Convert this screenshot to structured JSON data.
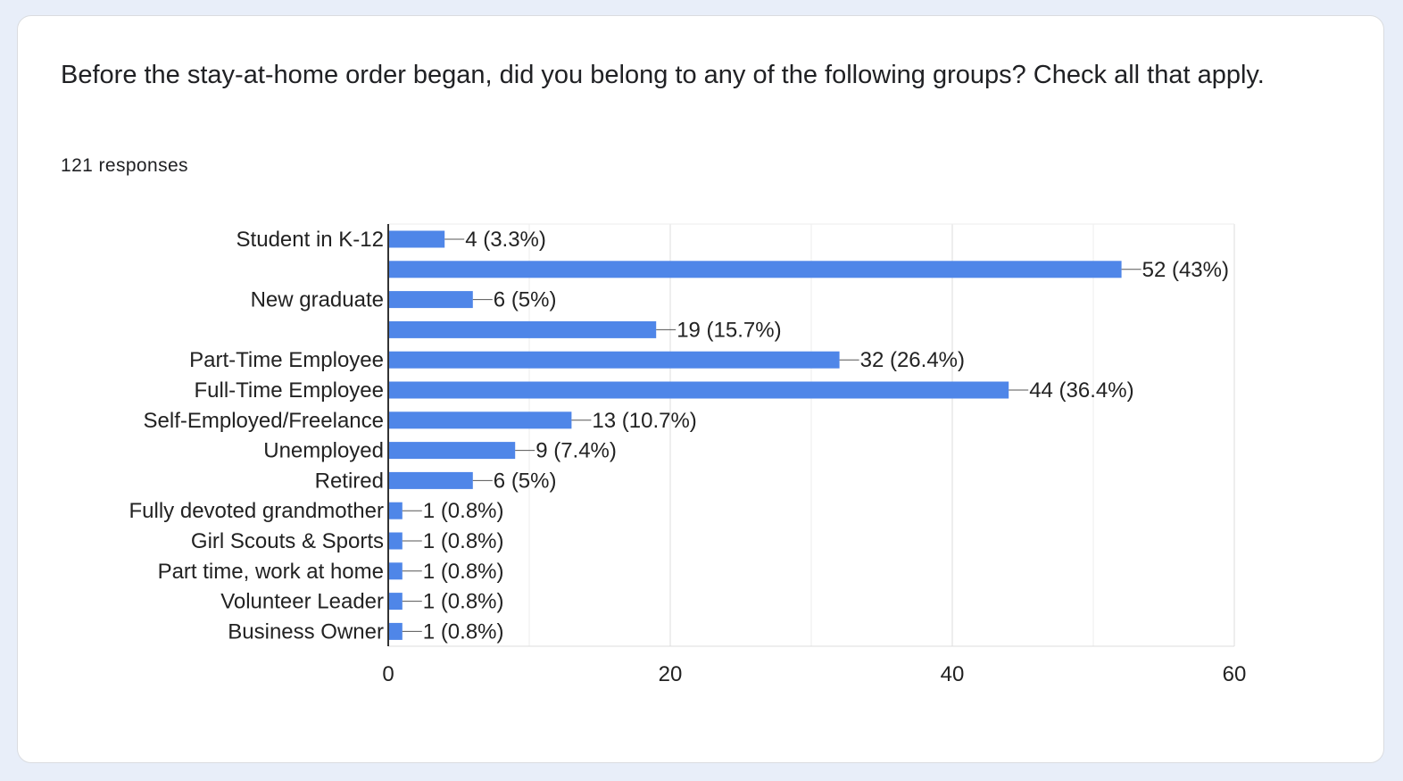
{
  "question": {
    "title": "Before the stay-at-home order began, did you belong to any of the following groups? Check all that apply.",
    "responses": "121 responses"
  },
  "chart_data": {
    "type": "bar",
    "orientation": "horizontal",
    "categories": [
      "Student in K-12",
      "",
      "New graduate",
      "",
      "Part-Time Employee",
      "Full-Time Employee",
      "Self-Employed/Freelance",
      "Unemployed",
      "Retired",
      "Fully devoted grandmother",
      "Girl Scouts & Sports",
      "Part time, work at home",
      "Volunteer Leader",
      "Business Owner"
    ],
    "values": [
      4,
      52,
      6,
      19,
      32,
      44,
      13,
      9,
      6,
      1,
      1,
      1,
      1,
      1
    ],
    "data_labels": [
      "4 (3.3%)",
      "52 (43%)",
      "6 (5%)",
      "19 (15.7%)",
      "32 (26.4%)",
      "44 (36.4%)",
      "13 (10.7%)",
      "9 (7.4%)",
      "6 (5%)",
      "1 (0.8%)",
      "1 (0.8%)",
      "1 (0.8%)",
      "1 (0.8%)",
      "1 (0.8%)"
    ],
    "xlim": [
      0,
      60
    ],
    "xticks": [
      0,
      20,
      40,
      60
    ],
    "grid": true,
    "bar_color": "#4f86e8"
  }
}
